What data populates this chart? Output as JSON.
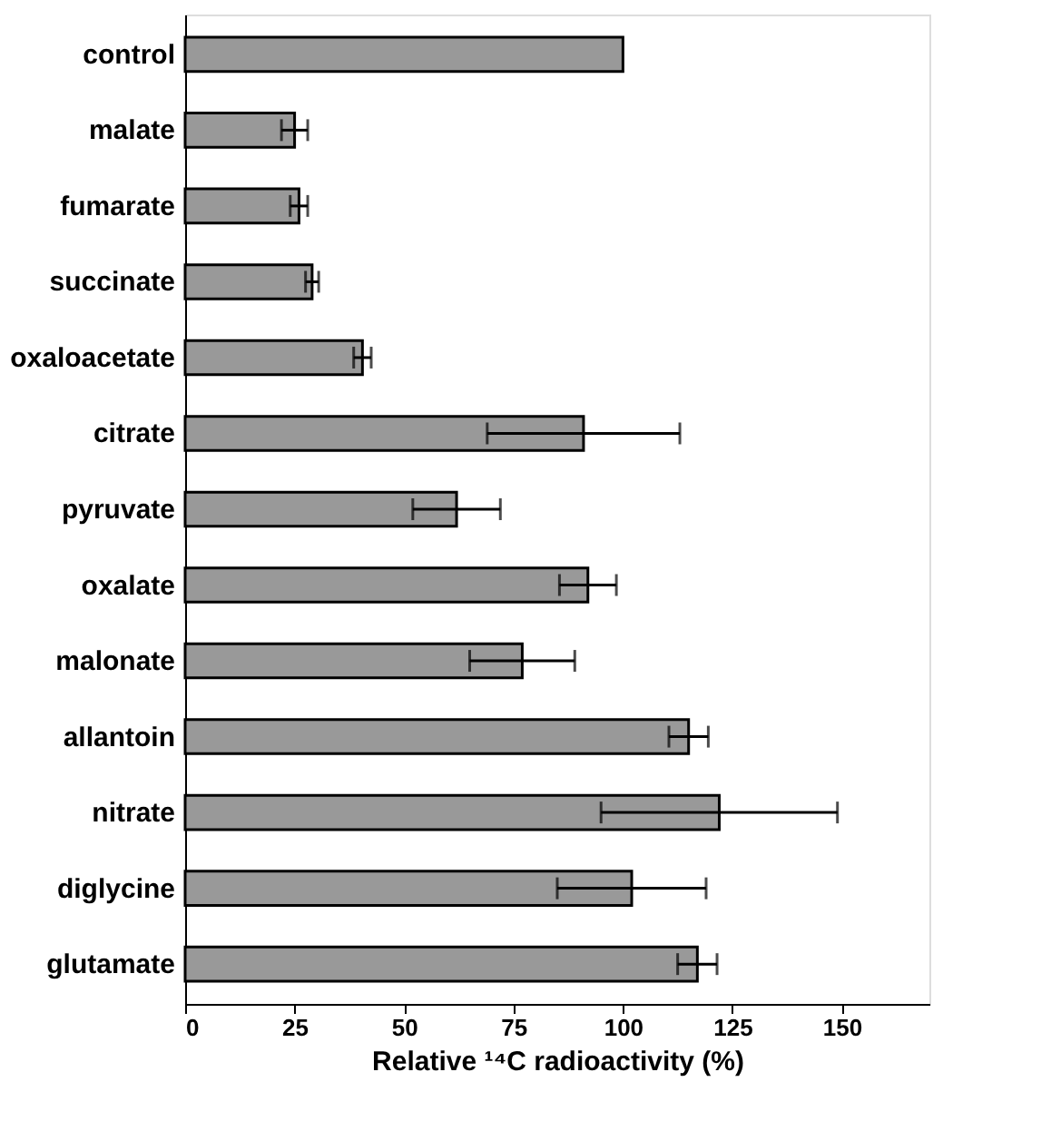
{
  "chart_data": {
    "type": "bar",
    "orientation": "horizontal",
    "xlabel": "Relative ¹⁴C radioactivity (%)",
    "categories": [
      "control",
      "malate",
      "fumarate",
      "succinate",
      "oxaloacetate",
      "citrate",
      "pyruvate",
      "oxalate",
      "malonate",
      "allantoin",
      "nitrate",
      "diglycine",
      "glutamate"
    ],
    "values": [
      100,
      25,
      26,
      29,
      40.5,
      91,
      62,
      92,
      77,
      115,
      122,
      102,
      117
    ],
    "errors": [
      null,
      3,
      2,
      1.5,
      2,
      22,
      10,
      6.5,
      12,
      4.5,
      27,
      17,
      4.5
    ],
    "color": "#999999",
    "xlim": [
      0,
      170
    ],
    "xticks": [
      0,
      25,
      50,
      75,
      100,
      125,
      150
    ],
    "grid": false
  }
}
